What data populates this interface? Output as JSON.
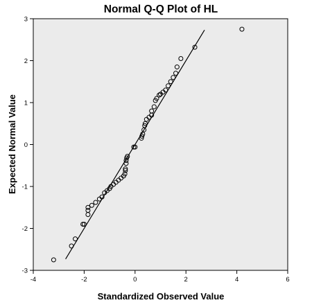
{
  "chart_data": {
    "type": "scatter",
    "title": "Normal Q-Q Plot of HL",
    "xlabel": "Standardized Observed Value",
    "ylabel": "Expected Normal Value",
    "xlim": [
      -4,
      6
    ],
    "ylim": [
      -3,
      3
    ],
    "xticks": [
      "-4",
      "-2",
      "0",
      "2",
      "4",
      "6"
    ],
    "yticks": [
      "-3",
      "-2",
      "-1",
      "0",
      "1",
      "2",
      "3"
    ],
    "grid": false,
    "plot_background": "#ebebeb",
    "point_color": "#000000",
    "reference_line": {
      "x": [
        -2.73,
        2.73
      ],
      "y": [
        -2.73,
        2.73
      ]
    },
    "points": [
      [
        -3.2,
        -2.75
      ],
      [
        -2.5,
        -2.42
      ],
      [
        -2.35,
        -2.25
      ],
      [
        -2.05,
        -1.9
      ],
      [
        -2.0,
        -1.9
      ],
      [
        -1.85,
        -1.67
      ],
      [
        -1.85,
        -1.57
      ],
      [
        -1.85,
        -1.5
      ],
      [
        -1.7,
        -1.45
      ],
      [
        -1.55,
        -1.38
      ],
      [
        -1.4,
        -1.3
      ],
      [
        -1.3,
        -1.25
      ],
      [
        -1.2,
        -1.15
      ],
      [
        -1.1,
        -1.1
      ],
      [
        -1.0,
        -1.05
      ],
      [
        -0.95,
        -1.0
      ],
      [
        -0.85,
        -0.95
      ],
      [
        -0.75,
        -0.9
      ],
      [
        -0.65,
        -0.85
      ],
      [
        -0.55,
        -0.8
      ],
      [
        -0.45,
        -0.75
      ],
      [
        -0.4,
        -0.7
      ],
      [
        -0.38,
        -0.62
      ],
      [
        -0.38,
        -0.58
      ],
      [
        -0.35,
        -0.45
      ],
      [
        -0.35,
        -0.38
      ],
      [
        -0.33,
        -0.32
      ],
      [
        -0.3,
        -0.28
      ],
      [
        -0.05,
        -0.06
      ],
      [
        0.0,
        -0.06
      ],
      [
        0.25,
        0.15
      ],
      [
        0.27,
        0.2
      ],
      [
        0.3,
        0.25
      ],
      [
        0.35,
        0.35
      ],
      [
        0.38,
        0.45
      ],
      [
        0.4,
        0.5
      ],
      [
        0.45,
        0.6
      ],
      [
        0.55,
        0.65
      ],
      [
        0.65,
        0.7
      ],
      [
        0.65,
        0.8
      ],
      [
        0.75,
        0.9
      ],
      [
        0.8,
        1.05
      ],
      [
        0.85,
        1.1
      ],
      [
        0.95,
        1.18
      ],
      [
        1.0,
        1.2
      ],
      [
        1.1,
        1.25
      ],
      [
        1.2,
        1.3
      ],
      [
        1.3,
        1.4
      ],
      [
        1.4,
        1.5
      ],
      [
        1.5,
        1.6
      ],
      [
        1.6,
        1.7
      ],
      [
        1.65,
        1.85
      ],
      [
        1.8,
        2.05
      ],
      [
        2.35,
        2.32
      ],
      [
        4.2,
        2.75
      ]
    ]
  }
}
